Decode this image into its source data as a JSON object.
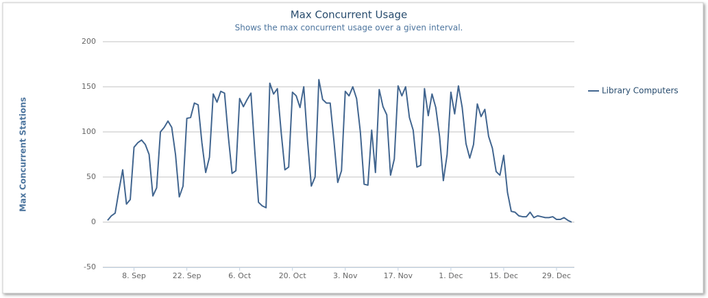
{
  "chart_data": {
    "type": "line",
    "title": "Max Concurrent Usage",
    "subtitle": "Shows the max concurrent usage over a given interval.",
    "y_label": "Max Concurrent Stations",
    "x": [
      "1. Sep",
      "2. Sep",
      "3. Sep",
      "4. Sep",
      "5. Sep",
      "6. Sep",
      "7. Sep",
      "8. Sep",
      "9. Sep",
      "10. Sep",
      "11. Sep",
      "12. Sep",
      "13. Sep",
      "14. Sep",
      "15. Sep",
      "16. Sep",
      "17. Sep",
      "18. Sep",
      "19. Sep",
      "20. Sep",
      "21. Sep",
      "22. Sep",
      "23. Sep",
      "24. Sep",
      "25. Sep",
      "26. Sep",
      "27. Sep",
      "28. Sep",
      "29. Sep",
      "30. Sep",
      "1. Oct",
      "2. Oct",
      "3. Oct",
      "4. Oct",
      "5. Oct",
      "6. Oct",
      "7. Oct",
      "8. Oct",
      "9. Oct",
      "10. Oct",
      "11. Oct",
      "12. Oct",
      "13. Oct",
      "14. Oct",
      "15. Oct",
      "16. Oct",
      "17. Oct",
      "18. Oct",
      "19. Oct",
      "20. Oct",
      "21. Oct",
      "22. Oct",
      "23. Oct",
      "24. Oct",
      "25. Oct",
      "26. Oct",
      "27. Oct",
      "28. Oct",
      "29. Oct",
      "30. Oct",
      "31. Oct",
      "1. Nov",
      "2. Nov",
      "3. Nov",
      "4. Nov",
      "5. Nov",
      "6. Nov",
      "7. Nov",
      "8. Nov",
      "9. Nov",
      "10. Nov",
      "11. Nov",
      "12. Nov",
      "13. Nov",
      "14. Nov",
      "15. Nov",
      "16. Nov",
      "17. Nov",
      "18. Nov",
      "19. Nov",
      "20. Nov",
      "21. Nov",
      "22. Nov",
      "23. Nov",
      "24. Nov",
      "25. Nov",
      "26. Nov",
      "27. Nov",
      "28. Nov",
      "29. Nov",
      "30. Nov",
      "1. Dec",
      "2. Dec",
      "3. Dec",
      "4. Dec",
      "5. Dec",
      "6. Dec",
      "7. Dec",
      "8. Dec",
      "9. Dec",
      "10. Dec",
      "11. Dec",
      "12. Dec",
      "13. Dec",
      "14. Dec",
      "15. Dec",
      "16. Dec",
      "17. Dec",
      "18. Dec",
      "19. Dec",
      "20. Dec",
      "21. Dec",
      "22. Dec",
      "23. Dec",
      "24. Dec",
      "25. Dec",
      "26. Dec",
      "27. Dec",
      "28. Dec",
      "29. Dec",
      "30. Dec",
      "31. Dec",
      "1. Jan",
      "2. Jan"
    ],
    "series": [
      {
        "name": "Library Computers",
        "color": "#41658f",
        "values": [
          2,
          7,
          10,
          35,
          58,
          20,
          25,
          83,
          88,
          91,
          86,
          75,
          29,
          38,
          100,
          105,
          112,
          105,
          75,
          28,
          40,
          115,
          116,
          132,
          130,
          88,
          55,
          72,
          142,
          133,
          145,
          143,
          95,
          54,
          57,
          137,
          128,
          136,
          143,
          80,
          22,
          18,
          16,
          154,
          142,
          148,
          100,
          58,
          61,
          144,
          140,
          127,
          150,
          90,
          40,
          50,
          158,
          136,
          132,
          132,
          90,
          44,
          57,
          145,
          140,
          150,
          137,
          100,
          42,
          41,
          102,
          55,
          147,
          128,
          119,
          52,
          70,
          151,
          140,
          150,
          116,
          102,
          61,
          63,
          148,
          118,
          142,
          127,
          95,
          46,
          75,
          144,
          120,
          151,
          127,
          87,
          71,
          86,
          131,
          117,
          125,
          95,
          82,
          56,
          52,
          74,
          33,
          12,
          11,
          7,
          6,
          6,
          11,
          5,
          7,
          6,
          5,
          5,
          6,
          3,
          3,
          5,
          2,
          0
        ]
      }
    ],
    "xticks": [
      "8. Sep",
      "22. Sep",
      "6. Oct",
      "20. Oct",
      "3. Nov",
      "17. Nov",
      "1. Dec",
      "15. Dec",
      "29. Dec"
    ],
    "ylim": [
      -50,
      200
    ],
    "yticks": [
      -50,
      0,
      50,
      100,
      150,
      200
    ],
    "grid": true,
    "legend": "right"
  }
}
